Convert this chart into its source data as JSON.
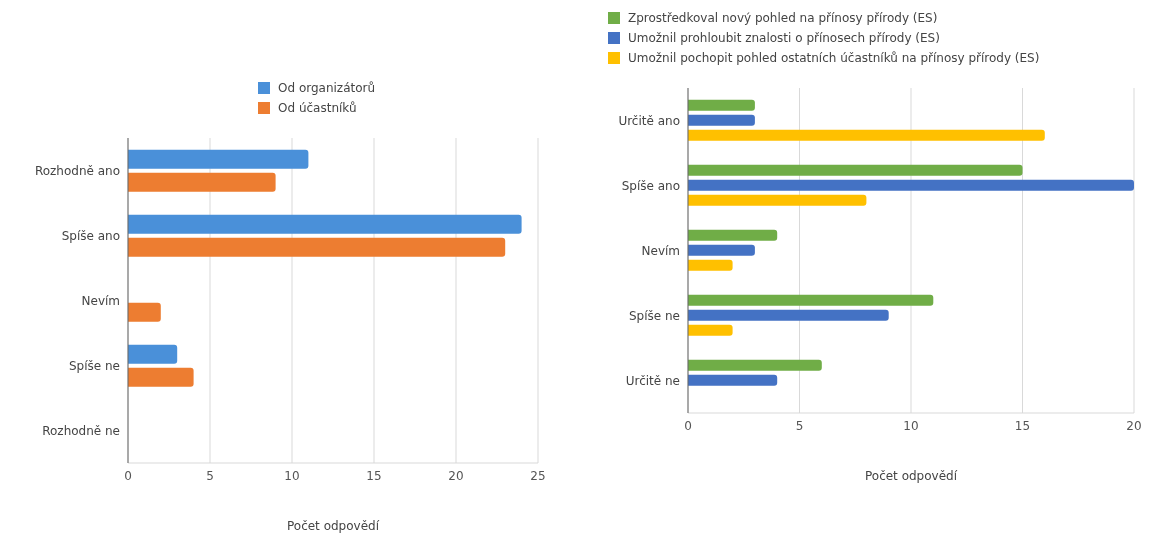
{
  "chart_data": [
    {
      "type": "bar",
      "orientation": "horizontal",
      "categories": [
        "Rozhodně ano",
        "Spíše ano",
        "Nevím",
        "Spíše ne",
        "Rozhodně ne"
      ],
      "series": [
        {
          "name": "Od organizátorů",
          "color": "#4a90d9",
          "values": [
            11,
            24,
            0,
            3,
            0
          ]
        },
        {
          "name": "Od účastníků",
          "color": "#ed7d31",
          "values": [
            9,
            23,
            2,
            4,
            0
          ]
        }
      ],
      "xlabel": "Počet odpovědí",
      "xlim": [
        0,
        25
      ],
      "xticks": [
        0,
        5,
        10,
        15,
        20,
        25
      ],
      "grid": "x",
      "legend": "top"
    },
    {
      "type": "bar",
      "orientation": "horizontal",
      "categories": [
        "Určitě ano",
        "Spíše ano",
        "Nevím",
        "Spíše ne",
        "Určitě ne"
      ],
      "series": [
        {
          "name": "Zprostředkoval nový pohled na přínosy přírody (ES)",
          "color": "#70ad47",
          "values": [
            3,
            15,
            4,
            11,
            6
          ]
        },
        {
          "name": "Umožnil prohloubit znalosti o přínosech přírody (ES)",
          "color": "#4472c4",
          "values": [
            3,
            20,
            3,
            9,
            4
          ]
        },
        {
          "name": "Umožnil pochopit pohled ostatních účastníků na přínosy přírody (ES)",
          "color": "#ffc000",
          "values": [
            16,
            8,
            2,
            2,
            0
          ]
        }
      ],
      "xlabel": "Počet odpovědí",
      "xlim": [
        0,
        20
      ],
      "xticks": [
        0,
        5,
        10,
        15,
        20
      ],
      "grid": "x",
      "legend": "top"
    }
  ]
}
